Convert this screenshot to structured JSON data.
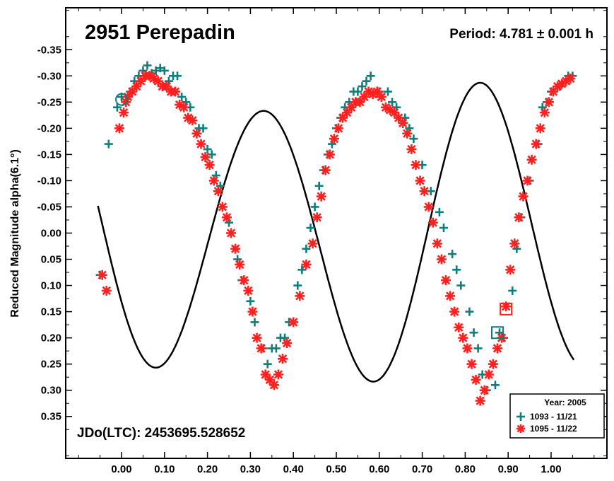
{
  "chart_data": {
    "type": "scatter",
    "title": "2951 Perepadin",
    "annotation_period": "Period: 4.781 ± 0.001 h",
    "annotation_epoch": "JDo(LTC): 2453695.528652",
    "xlabel": "",
    "ylabel": "Reduced Magnitude alpha(6.1°)",
    "xlim": [
      -0.13,
      1.13
    ],
    "ylim": [
      -0.43,
      0.43
    ],
    "y_inverted": true,
    "x_ticks": [
      0.0,
      0.1,
      0.2,
      0.3,
      0.4,
      0.5,
      0.6,
      0.7,
      0.8,
      0.9,
      1.0
    ],
    "x_tick_labels": [
      "0.00",
      "0.10",
      "0.20",
      "0.30",
      "0.40",
      "0.50",
      "0.60",
      "0.70",
      "0.80",
      "0.90",
      "1.00"
    ],
    "y_ticks": [
      -0.35,
      -0.3,
      -0.25,
      -0.2,
      -0.15,
      -0.1,
      -0.05,
      0.0,
      0.05,
      0.1,
      0.15,
      0.2,
      0.25,
      0.3,
      0.35
    ],
    "y_tick_labels": [
      "-0.35",
      "-0.30",
      "-0.25",
      "-0.20",
      "-0.15",
      "-0.10",
      "-0.05",
      "0.00",
      "0.05",
      "0.10",
      "0.15",
      "0.20",
      "0.25",
      "0.30",
      "0.35"
    ],
    "grid": false,
    "legend": {
      "title": "Year: 2005",
      "placement": "bottom-right"
    },
    "series": [
      {
        "name": "1093 - 11/21",
        "marker": "plus",
        "color": "#0e7d7d",
        "points": [
          [
            -0.05,
            0.08
          ],
          [
            -0.03,
            -0.17
          ],
          [
            -0.01,
            -0.24
          ],
          [
            0.0,
            -0.26
          ],
          [
            0.02,
            -0.27
          ],
          [
            0.03,
            -0.29
          ],
          [
            0.04,
            -0.3
          ],
          [
            0.05,
            -0.31
          ],
          [
            0.06,
            -0.32
          ],
          [
            0.07,
            -0.305
          ],
          [
            0.08,
            -0.31
          ],
          [
            0.09,
            -0.315
          ],
          [
            0.1,
            -0.31
          ],
          [
            0.11,
            -0.29
          ],
          [
            0.12,
            -0.3
          ],
          [
            0.13,
            -0.3
          ],
          [
            0.14,
            -0.26
          ],
          [
            0.15,
            -0.25
          ],
          [
            0.16,
            -0.24
          ],
          [
            0.18,
            -0.2
          ],
          [
            0.19,
            -0.2
          ],
          [
            0.2,
            -0.16
          ],
          [
            0.21,
            -0.15
          ],
          [
            0.22,
            -0.11
          ],
          [
            0.23,
            -0.09
          ],
          [
            0.25,
            -0.02
          ],
          [
            0.27,
            0.05
          ],
          [
            0.28,
            0.09
          ],
          [
            0.3,
            0.13
          ],
          [
            0.31,
            0.17
          ],
          [
            0.33,
            0.22
          ],
          [
            0.34,
            0.25
          ],
          [
            0.35,
            0.22
          ],
          [
            0.36,
            0.22
          ],
          [
            0.37,
            0.2
          ],
          [
            0.38,
            0.2
          ],
          [
            0.39,
            0.17
          ],
          [
            0.41,
            0.1
          ],
          [
            0.42,
            0.07
          ],
          [
            0.43,
            0.03
          ],
          [
            0.44,
            -0.01
          ],
          [
            0.45,
            -0.05
          ],
          [
            0.46,
            -0.09
          ],
          [
            0.47,
            -0.12
          ],
          [
            0.48,
            -0.15
          ],
          [
            0.49,
            -0.17
          ],
          [
            0.5,
            -0.2
          ],
          [
            0.51,
            -0.22
          ],
          [
            0.52,
            -0.24
          ],
          [
            0.53,
            -0.25
          ],
          [
            0.54,
            -0.27
          ],
          [
            0.55,
            -0.27
          ],
          [
            0.56,
            -0.28
          ],
          [
            0.57,
            -0.29
          ],
          [
            0.58,
            -0.3
          ],
          [
            0.6,
            -0.27
          ],
          [
            0.62,
            -0.27
          ],
          [
            0.63,
            -0.25
          ],
          [
            0.64,
            -0.24
          ],
          [
            0.66,
            -0.22
          ],
          [
            0.67,
            -0.2
          ],
          [
            0.68,
            -0.18
          ],
          [
            0.7,
            -0.13
          ],
          [
            0.72,
            -0.08
          ],
          [
            0.74,
            -0.04
          ],
          [
            0.75,
            -0.01
          ],
          [
            0.77,
            0.04
          ],
          [
            0.78,
            0.07
          ],
          [
            0.79,
            0.1
          ],
          [
            0.81,
            0.15
          ],
          [
            0.82,
            0.19
          ],
          [
            0.83,
            0.22
          ],
          [
            0.84,
            0.27
          ],
          [
            0.85,
            0.3
          ],
          [
            0.87,
            0.29
          ],
          [
            0.88,
            0.19
          ],
          [
            0.89,
            0.2
          ],
          [
            0.91,
            0.11
          ],
          [
            0.92,
            0.03
          ],
          [
            0.93,
            -0.03
          ],
          [
            0.95,
            -0.1
          ],
          [
            0.97,
            -0.17
          ],
          [
            0.98,
            -0.24
          ],
          [
            0.99,
            -0.25
          ],
          [
            1.0,
            -0.27
          ],
          [
            1.02,
            -0.28
          ],
          [
            1.04,
            -0.3
          ],
          [
            1.05,
            -0.3
          ]
        ]
      },
      {
        "name": "1095 - 11/22",
        "marker": "asterisk",
        "color": "#ff2020",
        "points": [
          [
            -0.045,
            0.08
          ],
          [
            -0.035,
            0.11
          ],
          [
            -0.005,
            -0.2
          ],
          [
            0.005,
            -0.23
          ],
          [
            0.01,
            -0.25
          ],
          [
            0.015,
            -0.26
          ],
          [
            0.025,
            -0.27
          ],
          [
            0.035,
            -0.28
          ],
          [
            0.045,
            -0.29
          ],
          [
            0.055,
            -0.3
          ],
          [
            0.065,
            -0.3
          ],
          [
            0.075,
            -0.295
          ],
          [
            0.085,
            -0.29
          ],
          [
            0.095,
            -0.28
          ],
          [
            0.105,
            -0.28
          ],
          [
            0.115,
            -0.27
          ],
          [
            0.125,
            -0.27
          ],
          [
            0.135,
            -0.245
          ],
          [
            0.145,
            -0.24
          ],
          [
            0.155,
            -0.22
          ],
          [
            0.165,
            -0.215
          ],
          [
            0.175,
            -0.19
          ],
          [
            0.185,
            -0.17
          ],
          [
            0.195,
            -0.145
          ],
          [
            0.205,
            -0.13
          ],
          [
            0.215,
            -0.1
          ],
          [
            0.225,
            -0.08
          ],
          [
            0.235,
            -0.05
          ],
          [
            0.245,
            -0.03
          ],
          [
            0.255,
            0.0
          ],
          [
            0.265,
            0.03
          ],
          [
            0.275,
            0.06
          ],
          [
            0.285,
            0.09
          ],
          [
            0.295,
            0.11
          ],
          [
            0.305,
            0.15
          ],
          [
            0.315,
            0.2
          ],
          [
            0.325,
            0.22
          ],
          [
            0.335,
            0.27
          ],
          [
            0.345,
            0.28
          ],
          [
            0.355,
            0.29
          ],
          [
            0.365,
            0.27
          ],
          [
            0.375,
            0.24
          ],
          [
            0.385,
            0.21
          ],
          [
            0.4,
            0.17
          ],
          [
            0.415,
            0.12
          ],
          [
            0.43,
            0.06
          ],
          [
            0.445,
            0.02
          ],
          [
            0.455,
            -0.03
          ],
          [
            0.465,
            -0.07
          ],
          [
            0.475,
            -0.12
          ],
          [
            0.485,
            -0.15
          ],
          [
            0.495,
            -0.18
          ],
          [
            0.505,
            -0.2
          ],
          [
            0.515,
            -0.22
          ],
          [
            0.525,
            -0.23
          ],
          [
            0.535,
            -0.24
          ],
          [
            0.545,
            -0.25
          ],
          [
            0.555,
            -0.25
          ],
          [
            0.565,
            -0.26
          ],
          [
            0.575,
            -0.27
          ],
          [
            0.585,
            -0.265
          ],
          [
            0.595,
            -0.27
          ],
          [
            0.605,
            -0.26
          ],
          [
            0.615,
            -0.24
          ],
          [
            0.625,
            -0.235
          ],
          [
            0.635,
            -0.23
          ],
          [
            0.645,
            -0.22
          ],
          [
            0.655,
            -0.21
          ],
          [
            0.665,
            -0.19
          ],
          [
            0.675,
            -0.16
          ],
          [
            0.685,
            -0.13
          ],
          [
            0.695,
            -0.1
          ],
          [
            0.705,
            -0.08
          ],
          [
            0.715,
            -0.05
          ],
          [
            0.725,
            -0.02
          ],
          [
            0.735,
            0.02
          ],
          [
            0.745,
            0.05
          ],
          [
            0.755,
            0.09
          ],
          [
            0.765,
            0.12
          ],
          [
            0.775,
            0.15
          ],
          [
            0.785,
            0.18
          ],
          [
            0.795,
            0.2
          ],
          [
            0.805,
            0.22
          ],
          [
            0.815,
            0.25
          ],
          [
            0.825,
            0.28
          ],
          [
            0.835,
            0.32
          ],
          [
            0.845,
            0.3
          ],
          [
            0.855,
            0.27
          ],
          [
            0.865,
            0.25
          ],
          [
            0.875,
            0.22
          ],
          [
            0.885,
            0.2
          ],
          [
            0.895,
            0.14
          ],
          [
            0.905,
            0.07
          ],
          [
            0.915,
            0.02
          ],
          [
            0.925,
            -0.03
          ],
          [
            0.935,
            -0.07
          ],
          [
            0.945,
            -0.1
          ],
          [
            0.955,
            -0.14
          ],
          [
            0.965,
            -0.17
          ],
          [
            0.975,
            -0.2
          ],
          [
            0.985,
            -0.23
          ],
          [
            0.995,
            -0.25
          ],
          [
            1.005,
            -0.27
          ],
          [
            1.015,
            -0.28
          ],
          [
            1.025,
            -0.285
          ],
          [
            1.035,
            -0.29
          ],
          [
            1.045,
            -0.295
          ]
        ]
      }
    ],
    "fit_curve_label": "",
    "highlighted_points": [
      {
        "series": "1093 - 11/21",
        "shape": "circle",
        "x": 0.0,
        "y": -0.255
      },
      {
        "series": "1093 - 11/21",
        "shape": "square",
        "x": 0.875,
        "y": 0.19
      },
      {
        "series": "1095 - 11/22",
        "shape": "square",
        "x": 0.895,
        "y": 0.145
      }
    ]
  }
}
